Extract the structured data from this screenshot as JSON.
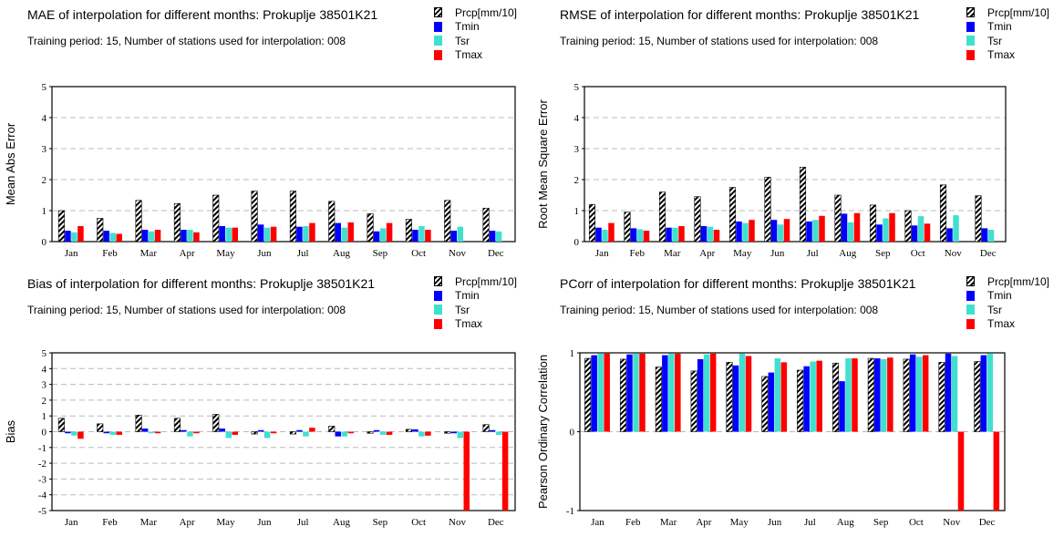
{
  "months": [
    "Jan",
    "Feb",
    "Mar",
    "Apr",
    "May",
    "Jun",
    "Jul",
    "Aug",
    "Sep",
    "Oct",
    "Nov",
    "Dec"
  ],
  "colors": {
    "Prcp[mm/10]": "hatch",
    "Tmin": "#0000ff",
    "Tsr": "#40e0d0",
    "Tmax": "#ff0000"
  },
  "chart_data": [
    {
      "type": "bar",
      "title": "MAE of interpolation for different months: Prokuplje  38501K21",
      "subtitle": "Training period: 15, Number of stations used for interpolation: 008",
      "ylabel": "Mean Abs Error",
      "ylim": [
        0,
        5
      ],
      "yticks": [
        0,
        1,
        2,
        3,
        4,
        5
      ],
      "categories": [
        "Jan",
        "Feb",
        "Mar",
        "Apr",
        "May",
        "Jun",
        "Jul",
        "Aug",
        "Sep",
        "Oct",
        "Nov",
        "Dec"
      ],
      "series": [
        {
          "name": "Prcp[mm/10]",
          "values": [
            1.0,
            0.75,
            1.33,
            1.23,
            1.5,
            1.63,
            1.63,
            1.3,
            0.9,
            0.72,
            1.33,
            1.08
          ]
        },
        {
          "name": "Tmin",
          "values": [
            0.35,
            0.35,
            0.38,
            0.38,
            0.5,
            0.55,
            0.48,
            0.6,
            0.33,
            0.38,
            0.35,
            0.35
          ]
        },
        {
          "name": "Tsr",
          "values": [
            0.3,
            0.28,
            0.33,
            0.38,
            0.45,
            0.45,
            0.5,
            0.45,
            0.43,
            0.5,
            0.48,
            0.33
          ]
        },
        {
          "name": "Tmax",
          "values": [
            0.5,
            0.25,
            0.38,
            0.3,
            0.45,
            0.48,
            0.6,
            0.62,
            0.6,
            0.38,
            0.0,
            0.0
          ]
        }
      ]
    },
    {
      "type": "bar",
      "title": "RMSE of interpolation for different months: Prokuplje  38501K21",
      "subtitle": "Training period: 15, Number of stations used for interpolation: 008",
      "ylabel": "Root Mean Square Error",
      "ylim": [
        0,
        5
      ],
      "yticks": [
        0,
        1,
        2,
        3,
        4,
        5
      ],
      "categories": [
        "Jan",
        "Feb",
        "Mar",
        "Apr",
        "May",
        "Jun",
        "Jul",
        "Aug",
        "Sep",
        "Oct",
        "Nov",
        "Dec"
      ],
      "series": [
        {
          "name": "Prcp[mm/10]",
          "values": [
            1.2,
            0.95,
            1.6,
            1.45,
            1.75,
            2.08,
            2.4,
            1.5,
            1.18,
            1.0,
            1.83,
            1.48
          ]
        },
        {
          "name": "Tmin",
          "values": [
            0.45,
            0.43,
            0.45,
            0.5,
            0.65,
            0.7,
            0.65,
            0.9,
            0.55,
            0.52,
            0.43,
            0.43
          ]
        },
        {
          "name": "Tsr",
          "values": [
            0.38,
            0.4,
            0.45,
            0.48,
            0.6,
            0.55,
            0.7,
            0.62,
            0.75,
            0.82,
            0.85,
            0.38
          ]
        },
        {
          "name": "Tmax",
          "values": [
            0.6,
            0.35,
            0.5,
            0.38,
            0.7,
            0.73,
            0.83,
            0.92,
            0.92,
            0.58,
            0.0,
            0.0
          ]
        }
      ]
    },
    {
      "type": "bar",
      "title": "Bias of interpolation for different months: Prokuplje  38501K21",
      "subtitle": "Training period: 15, Number of stations used for interpolation: 008",
      "ylabel": "Bias",
      "ylim": [
        -5,
        5
      ],
      "yticks": [
        -5,
        -4,
        -3,
        -2,
        -1,
        0,
        1,
        2,
        3,
        4,
        5
      ],
      "categories": [
        "Jan",
        "Feb",
        "Mar",
        "Apr",
        "May",
        "Jun",
        "Jul",
        "Aug",
        "Sep",
        "Oct",
        "Nov",
        "Dec"
      ],
      "series": [
        {
          "name": "Prcp[mm/10]",
          "values": [
            0.85,
            0.5,
            1.05,
            0.85,
            1.1,
            -0.15,
            -0.15,
            0.35,
            -0.1,
            0.15,
            -0.1,
            0.45
          ]
        },
        {
          "name": "Tmin",
          "values": [
            -0.1,
            -0.1,
            0.2,
            0.1,
            0.2,
            0.1,
            0.1,
            -0.3,
            0.1,
            0.15,
            -0.1,
            0.1
          ]
        },
        {
          "name": "Tsr",
          "values": [
            -0.25,
            -0.2,
            -0.1,
            -0.3,
            -0.4,
            -0.4,
            -0.3,
            -0.3,
            -0.2,
            -0.3,
            -0.4,
            -0.2
          ]
        },
        {
          "name": "Tmax",
          "values": [
            -0.45,
            -0.2,
            -0.1,
            -0.1,
            -0.2,
            -0.1,
            0.25,
            -0.1,
            -0.2,
            -0.25,
            -5.0,
            -5.0
          ]
        }
      ]
    },
    {
      "type": "bar",
      "title": "PCorr of interpolation for different months: Prokuplje  38501K21",
      "subtitle": "Training period: 15, Number of stations used for interpolation: 008",
      "ylabel": "Pearson Ordinary Correlation",
      "ylim": [
        -1,
        1
      ],
      "yticks": [
        -1,
        0,
        1
      ],
      "categories": [
        "Jan",
        "Feb",
        "Mar",
        "Apr",
        "May",
        "Jun",
        "Jul",
        "Aug",
        "Sep",
        "Oct",
        "Nov",
        "Dec"
      ],
      "series": [
        {
          "name": "Prcp[mm/10]",
          "values": [
            0.93,
            0.92,
            0.82,
            0.77,
            0.88,
            0.7,
            0.78,
            0.87,
            0.93,
            0.92,
            0.88,
            0.89
          ]
        },
        {
          "name": "Tmin",
          "values": [
            0.97,
            0.98,
            0.97,
            0.92,
            0.84,
            0.75,
            0.83,
            0.64,
            0.93,
            0.98,
            0.99,
            0.97
          ]
        },
        {
          "name": "Tsr",
          "values": [
            0.99,
            0.99,
            0.99,
            0.98,
            0.99,
            0.93,
            0.89,
            0.93,
            0.92,
            0.95,
            0.96,
            0.99
          ]
        },
        {
          "name": "Tmax",
          "values": [
            0.99,
            0.99,
            0.99,
            0.99,
            0.96,
            0.88,
            0.9,
            0.93,
            0.94,
            0.97,
            -1.0,
            -1.0
          ]
        }
      ]
    }
  ]
}
